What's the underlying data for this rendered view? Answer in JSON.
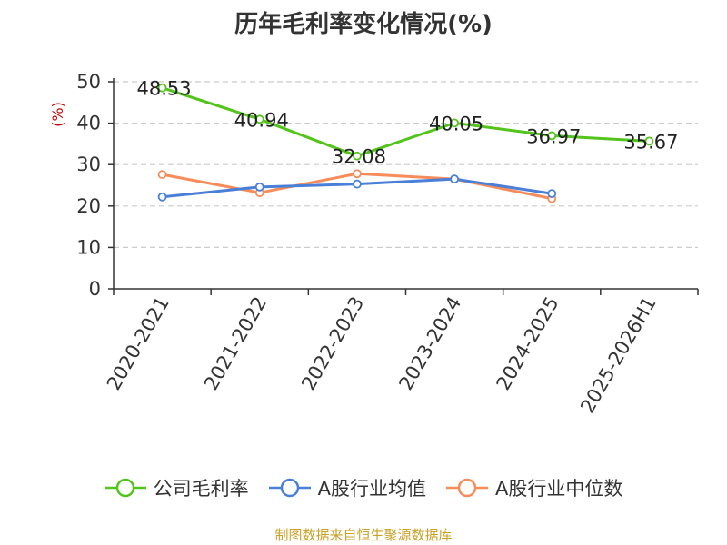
{
  "title": "历年毛利率变化情况(%)",
  "source": "制图数据来自恒生聚源数据库",
  "colors": {
    "company": "#52c41a",
    "industry_avg": "#4a7fd8",
    "industry_median": "#f78c5a",
    "grid": "#cccccc",
    "axis": "#333333",
    "ylabel": "#cc0000",
    "source": "#c9a227"
  },
  "chart_data": {
    "type": "line",
    "title": "历年毛利率变化情况(%)",
    "ylabel": "(%)",
    "xlabel": "",
    "ylim": [
      0,
      50
    ],
    "yticks": [
      0,
      10,
      20,
      30,
      40,
      50
    ],
    "grid": true,
    "legend_position": "bottom",
    "categories": [
      "2020-2021",
      "2021-2022",
      "2022-2023",
      "2023-2024",
      "2024-2025",
      "2025-2026H1"
    ],
    "series": [
      {
        "name": "公司毛利率",
        "color": "#52c41a",
        "values": [
          48.53,
          40.94,
          32.08,
          40.05,
          36.97,
          35.67
        ],
        "labels": [
          "48.53",
          "40.94",
          "32.08",
          "40.05",
          "36.97",
          "35.67"
        ]
      },
      {
        "name": "A股行业均值",
        "color": "#4a7fd8",
        "values": [
          22.2,
          24.6,
          25.3,
          26.5,
          23.0,
          null
        ]
      },
      {
        "name": "A股行业中位数",
        "color": "#f78c5a",
        "values": [
          27.6,
          23.2,
          27.8,
          26.5,
          21.8,
          null
        ]
      }
    ]
  }
}
